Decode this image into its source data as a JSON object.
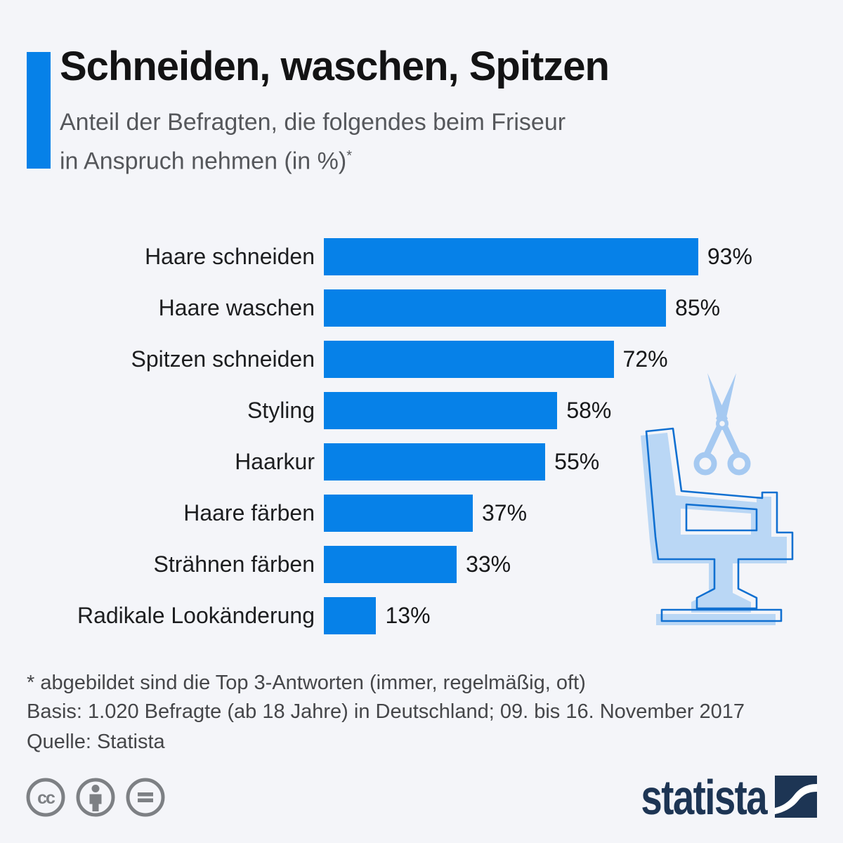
{
  "page": {
    "background_color": "#f4f5f9",
    "accent_color": "#0681e8"
  },
  "header": {
    "title": "Schneiden, waschen, Spitzen",
    "subtitle_line1": "Anteil der Befragten, die folgendes beim Friseur",
    "subtitle_line2": "in Anspruch nehmen (in %)",
    "subtitle_footnote_marker": "*"
  },
  "chart_data": {
    "type": "bar",
    "orientation": "horizontal",
    "title": "Schneiden, waschen, Spitzen",
    "subtitle": "Anteil der Befragten, die folgendes beim Friseur in Anspruch nehmen (in %)*",
    "unit": "%",
    "xlim": [
      0,
      100
    ],
    "grid": false,
    "legend": false,
    "bar_color": "#0681e8",
    "categories": [
      "Haare schneiden",
      "Haare waschen",
      "Spitzen schneiden",
      "Styling",
      "Haarkur",
      "Haare färben",
      "Strähnen färben",
      "Radikale Lookänderung"
    ],
    "values": [
      93,
      85,
      72,
      58,
      55,
      37,
      33,
      13
    ],
    "value_labels": [
      "93%",
      "85%",
      "72%",
      "58%",
      "55%",
      "37%",
      "33%",
      "13%"
    ]
  },
  "illustration": {
    "icons": [
      "scissors-icon",
      "barber-chair-icon"
    ],
    "fill_color": "#bad7f5",
    "scissors_color": "#a5c9f1",
    "outline_color": "#1170d1"
  },
  "footnotes": {
    "line1": "* abgebildet sind die Top 3-Antworten (immer, regelmäßig, oft)",
    "line2": "Basis: 1.020 Befragte (ab 18 Jahre) in Deutschland; 09. bis 16. November 2017",
    "source_line": "Quelle: Statista"
  },
  "footer": {
    "license_icons": [
      "cc-icon",
      "attribution-icon",
      "equals-icon"
    ],
    "license_cc_text": "cc",
    "logo_text": "statista",
    "logo_color": "#1d3554",
    "icon_color": "#7d8084"
  }
}
